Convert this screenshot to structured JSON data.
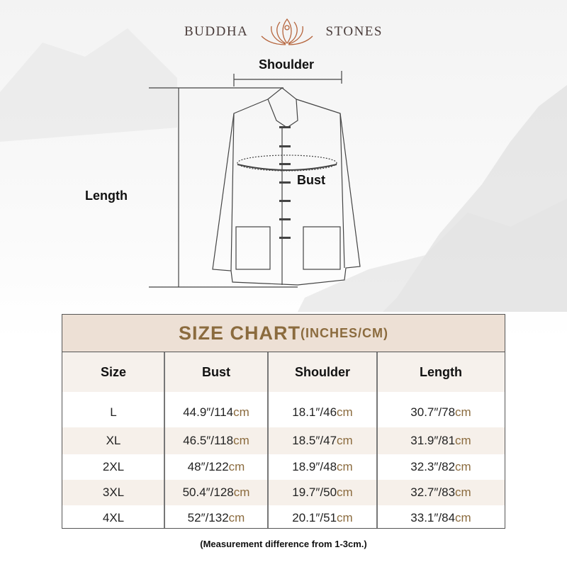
{
  "brand": {
    "left": "BUDDHA",
    "right": "STONES",
    "accent": "#b5643c"
  },
  "diagram": {
    "shoulder": "Shoulder",
    "bust": "Bust",
    "length": "Length"
  },
  "table": {
    "title": "SIZE CHART",
    "title_unit": "(INCHES/CM)",
    "headers": [
      "Size",
      "Bust",
      "Shoulder",
      "Length"
    ],
    "unit": "cm",
    "rows": [
      {
        "size": "L",
        "bust": "44.9″/114",
        "shoulder": "18.1″/46",
        "length": "30.7″/78"
      },
      {
        "size": "XL",
        "bust": "46.5″/118",
        "shoulder": "18.5″/47",
        "length": "31.9″/81"
      },
      {
        "size": "2XL",
        "bust": "48″/122",
        "shoulder": "18.9″/48",
        "length": "32.3″/82"
      },
      {
        "size": "3XL",
        "bust": "50.4″/128",
        "shoulder": "19.7″/50",
        "length": "32.7″/83"
      },
      {
        "size": "4XL",
        "bust": "52″/132",
        "shoulder": "20.1″/51",
        "length": "33.1″/84"
      }
    ],
    "colors": {
      "title_bg": "#ede0d5",
      "title_text": "#8b6b3e",
      "row_alt": "#f6f0ea"
    }
  },
  "note": "(Measurement difference from 1-3cm.)"
}
